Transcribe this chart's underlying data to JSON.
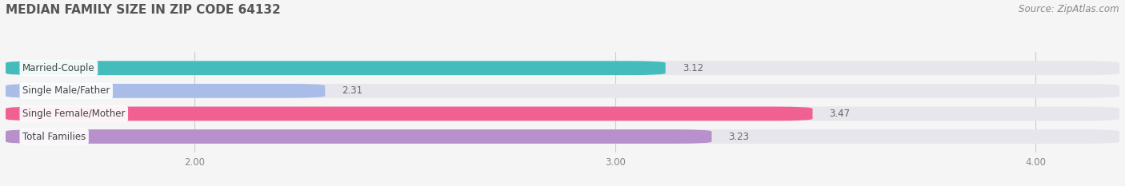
{
  "title": "MEDIAN FAMILY SIZE IN ZIP CODE 64132",
  "source": "Source: ZipAtlas.com",
  "categories": [
    "Married-Couple",
    "Single Male/Father",
    "Single Female/Mother",
    "Total Families"
  ],
  "values": [
    3.12,
    2.31,
    3.47,
    3.23
  ],
  "bar_colors": [
    "#45bcbc",
    "#aabde8",
    "#f06090",
    "#b890cc"
  ],
  "background_color": "#f5f5f5",
  "bar_bg_color": "#e6e6ec",
  "xlim_min": 1.55,
  "xlim_max": 4.2,
  "xticks": [
    2.0,
    3.0,
    4.0
  ],
  "xtick_labels": [
    "2.00",
    "3.00",
    "4.00"
  ],
  "title_fontsize": 11,
  "label_fontsize": 8.5,
  "value_fontsize": 8.5,
  "source_fontsize": 8.5
}
